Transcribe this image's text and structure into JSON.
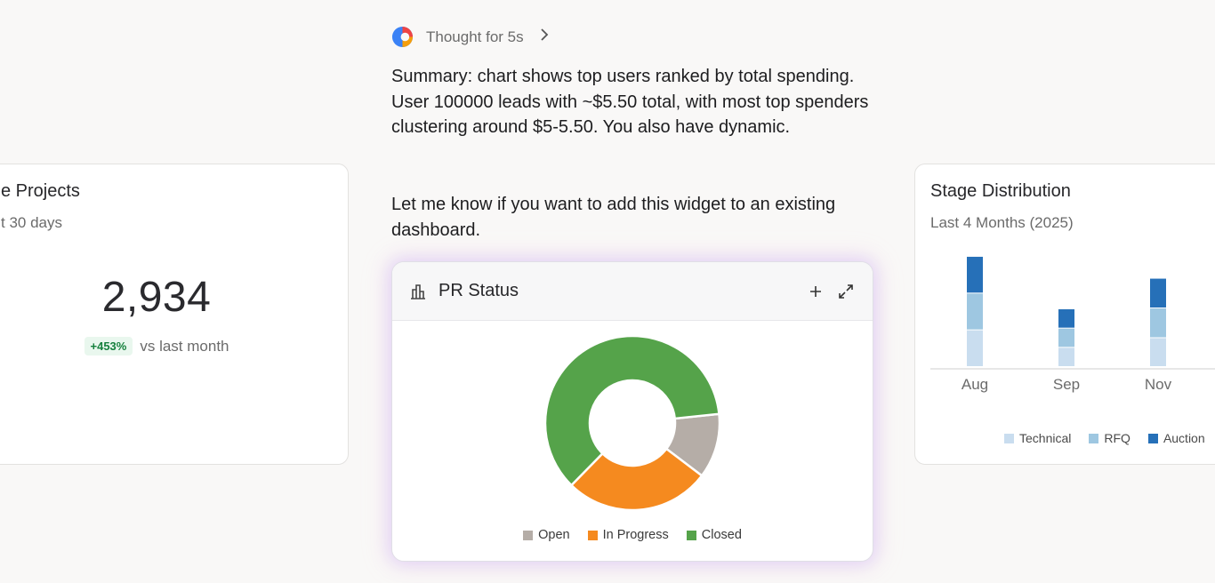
{
  "thought": {
    "label": "Thought for 5s"
  },
  "messages": {
    "summary": "Summary: chart shows top users ranked by total spending. User 100000 leads with ~$5.50 total, with most top spenders clustering around $5-5.50. You also have dynamic.",
    "followup": "Let me know if you want to add this widget to an existing dashboard."
  },
  "left_card": {
    "title": "e Projects",
    "subtitle": "t 30 days",
    "value": "2,934",
    "delta": "+453%",
    "delta_suffix": "vs last month"
  },
  "widget": {
    "title": "PR Status",
    "icons": [
      "bar-chart-icon",
      "plus-icon",
      "expand-icon"
    ]
  },
  "right_card": {
    "title": "Stage Distribution",
    "subtitle": "Last 4 Months (2025)"
  },
  "colors": {
    "open": "#b5ada7",
    "in_progress": "#f58a1f",
    "closed": "#55a34a",
    "technical": "#c9ddef",
    "rfq": "#9ec7e1",
    "auction": "#2670b8",
    "badge_green": "#15803d"
  },
  "chart_data": [
    {
      "type": "pie",
      "title": "PR Status",
      "categories": [
        "Open",
        "In Progress",
        "Closed"
      ],
      "values": [
        12,
        27,
        61
      ],
      "colors": [
        "#b5ada7",
        "#f58a1f",
        "#55a34a"
      ],
      "donut": true,
      "legend": "bottom"
    },
    {
      "type": "bar",
      "stacked": true,
      "title": "Stage Distribution",
      "subtitle": "Last 4 Months (2025)",
      "categories": [
        "Aug",
        "Sep",
        "Nov"
      ],
      "series": [
        {
          "name": "Technical",
          "values": [
            42,
            22,
            33
          ],
          "color": "#c9ddef"
        },
        {
          "name": "RFQ",
          "values": [
            42,
            22,
            34
          ],
          "color": "#9ec7e1"
        },
        {
          "name": "Auction",
          "values": [
            42,
            22,
            34
          ],
          "color": "#2670b8"
        }
      ],
      "ylim": [
        0,
        130
      ],
      "legend": "bottom"
    }
  ]
}
